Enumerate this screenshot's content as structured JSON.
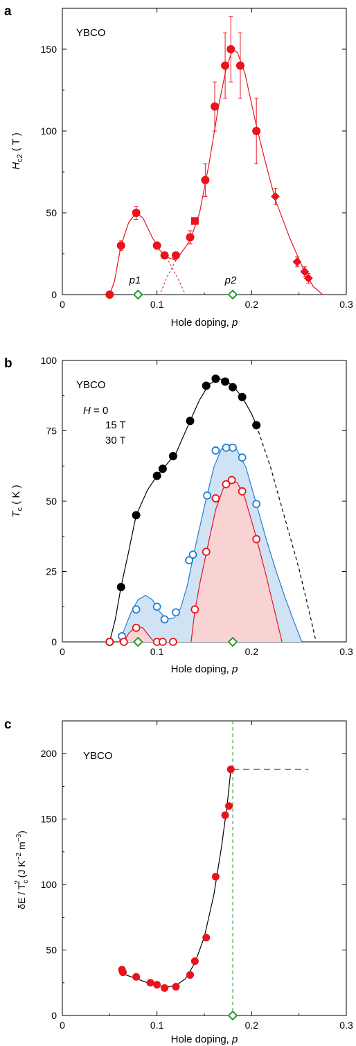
{
  "panels": {
    "a": {
      "label": "a",
      "sample": "YBCO",
      "xlabel_main": "Hole doping, ",
      "xlabel_var": "p",
      "ylabel_main": "H",
      "ylabel_sub": "c2",
      "ylabel_unit": " ( T )",
      "markers": [
        {
          "text": "p1",
          "x": 0.08
        },
        {
          "text": "p2",
          "x": 0.18
        }
      ]
    },
    "b": {
      "label": "b",
      "sample": "YBCO",
      "xlabel_main": "Hole doping, ",
      "xlabel_var": "p",
      "ylabel_main": "T",
      "ylabel_sub": "c",
      "ylabel_unit": " ( K )",
      "legend": [
        {
          "prefix": "H",
          "text": " = 0",
          "color": "#000000"
        },
        {
          "prefix": "",
          "text": "15 T",
          "color": "#1f7fd0"
        },
        {
          "prefix": "",
          "text": "30 T",
          "color": "#e8131b"
        }
      ]
    },
    "c": {
      "label": "c",
      "sample": "YBCO",
      "xlabel_main": "Hole doping, ",
      "xlabel_var": "p",
      "ylabel_text": "δE / T",
      "ylabel_sub": "c",
      "ylabel_sup": "2",
      "ylabel_unit": " (J K",
      "ylabel_unit_sup1": "−2",
      "ylabel_unit_mid": " m",
      "ylabel_unit_sup2": "−3",
      "ylabel_unit_end": ")"
    }
  },
  "colors": {
    "red": "#e8131b",
    "blue": "#1f7fd0",
    "blue_fill": "#cfe3f5",
    "red_fill": "#f9d2d4",
    "green": "#2a9a2a",
    "black": "#000000"
  },
  "chart_data": [
    {
      "type": "scatter",
      "panel": "a",
      "title": "",
      "xlabel": "Hole doping, p",
      "ylabel": "Hc2 ( T )",
      "xlim": [
        0,
        0.3
      ],
      "ylim": [
        0,
        175
      ],
      "xticks": [
        0,
        0.1,
        0.2,
        0.3
      ],
      "xtick_labels": [
        "0",
        "0.1",
        "0.2",
        "0.3"
      ],
      "yticks": [
        0,
        50,
        100,
        150
      ],
      "series": [
        {
          "marker": "circle",
          "color": "#e8131b",
          "points": [
            [
              0.05,
              0,
              0
            ],
            [
              0.062,
              30,
              3
            ],
            [
              0.078,
              50,
              4
            ],
            [
              0.1,
              30,
              0
            ],
            [
              0.108,
              24,
              0
            ],
            [
              0.12,
              24,
              0
            ],
            [
              0.135,
              35,
              4
            ],
            [
              0.151,
              70,
              10
            ],
            [
              0.161,
              115,
              15
            ],
            [
              0.172,
              140,
              20
            ],
            [
              0.178,
              150,
              20
            ],
            [
              0.188,
              140,
              20
            ],
            [
              0.205,
              100,
              20
            ]
          ]
        },
        {
          "marker": "square",
          "color": "#e8131b",
          "points": [
            [
              0.14,
              45,
              0
            ]
          ]
        },
        {
          "marker": "diamond",
          "color": "#e8131b",
          "points": [
            [
              0.225,
              60,
              5
            ],
            [
              0.248,
              20,
              3
            ],
            [
              0.256,
              14,
              3
            ],
            [
              0.26,
              10,
              3
            ]
          ]
        }
      ],
      "curves": [
        {
          "style": "solid",
          "points": [
            [
              0.05,
              0
            ],
            [
              0.055,
              8
            ],
            [
              0.062,
              30
            ],
            [
              0.07,
              44
            ],
            [
              0.078,
              50
            ],
            [
              0.085,
              47
            ],
            [
              0.095,
              35
            ],
            [
              0.103,
              27
            ],
            [
              0.11,
              23
            ],
            [
              0.12,
              21
            ],
            [
              0.135,
              33
            ],
            [
              0.145,
              50
            ],
            [
              0.155,
              80
            ],
            [
              0.165,
              115
            ],
            [
              0.173,
              138
            ],
            [
              0.18,
              150
            ],
            [
              0.185,
              148
            ],
            [
              0.193,
              135
            ],
            [
              0.205,
              103
            ],
            [
              0.215,
              80
            ],
            [
              0.225,
              58
            ],
            [
              0.24,
              35
            ],
            [
              0.255,
              15
            ],
            [
              0.265,
              5
            ],
            [
              0.275,
              0
            ]
          ]
        }
      ],
      "dashed_curves": [
        {
          "points": [
            [
              0.11,
              23
            ],
            [
              0.122,
              10
            ],
            [
              0.13,
              0
            ]
          ]
        },
        {
          "points": [
            [
              0.12,
              21
            ],
            [
              0.11,
              10
            ],
            [
              0.103,
              0
            ]
          ]
        }
      ],
      "open_markers": [
        {
          "x": 0.08,
          "y": 0
        },
        {
          "x": 0.18,
          "y": 0
        }
      ]
    },
    {
      "type": "scatter",
      "panel": "b",
      "title": "",
      "xlabel": "Hole doping, p",
      "ylabel": "Tc ( K )",
      "xlim": [
        0,
        0.3
      ],
      "ylim": [
        0,
        100
      ],
      "xticks": [
        0,
        0.1,
        0.2,
        0.3
      ],
      "xtick_labels": [
        "0",
        "0.1",
        "0.2",
        "0.3"
      ],
      "yticks": [
        0,
        25,
        50,
        75,
        100
      ],
      "series": [
        {
          "name": "H = 0",
          "marker": "filled",
          "color": "#000000",
          "points": [
            [
              0.05,
              0
            ],
            [
              0.062,
              19.5
            ],
            [
              0.078,
              45
            ],
            [
              0.1,
              59
            ],
            [
              0.106,
              61.5
            ],
            [
              0.117,
              66
            ],
            [
              0.135,
              78.5
            ],
            [
              0.152,
              91
            ],
            [
              0.162,
              93.5
            ],
            [
              0.172,
              92.5
            ],
            [
              0.18,
              90.5
            ],
            [
              0.19,
              87
            ],
            [
              0.205,
              77
            ]
          ]
        },
        {
          "name": "15 T",
          "marker": "open",
          "color": "#1f7fd0",
          "points": [
            [
              0.063,
              2
            ],
            [
              0.078,
              11.5
            ],
            [
              0.1,
              12.5
            ],
            [
              0.108,
              8
            ],
            [
              0.12,
              10.5
            ],
            [
              0.134,
              29
            ],
            [
              0.138,
              31
            ],
            [
              0.153,
              52
            ],
            [
              0.162,
              68
            ],
            [
              0.173,
              69
            ],
            [
              0.18,
              69
            ],
            [
              0.19,
              65.5
            ],
            [
              0.205,
              49
            ]
          ]
        },
        {
          "name": "30 T",
          "marker": "open",
          "color": "#e8131b",
          "points": [
            [
              0.05,
              0
            ],
            [
              0.065,
              0
            ],
            [
              0.078,
              5
            ],
            [
              0.1,
              0
            ],
            [
              0.106,
              0
            ],
            [
              0.117,
              0
            ],
            [
              0.14,
              11.5
            ],
            [
              0.152,
              32
            ],
            [
              0.162,
              51
            ],
            [
              0.173,
              56
            ],
            [
              0.179,
              57.5
            ],
            [
              0.19,
              53.5
            ],
            [
              0.205,
              36.5
            ]
          ]
        }
      ],
      "curves": [
        {
          "name": "H = 0",
          "color": "#000000",
          "style": "solid",
          "points": [
            [
              0.05,
              0
            ],
            [
              0.056,
              8
            ],
            [
              0.062,
              19.5
            ],
            [
              0.07,
              32
            ],
            [
              0.078,
              45
            ],
            [
              0.09,
              54
            ],
            [
              0.1,
              59
            ],
            [
              0.11,
              63
            ],
            [
              0.12,
              67
            ],
            [
              0.135,
              78.5
            ],
            [
              0.145,
              86
            ],
            [
              0.155,
              91.5
            ],
            [
              0.165,
              93.5
            ],
            [
              0.172,
              93
            ],
            [
              0.18,
              91
            ],
            [
              0.19,
              87
            ],
            [
              0.2,
              81
            ],
            [
              0.205,
              77
            ]
          ]
        },
        {
          "name": "H = 0 ext",
          "color": "#000000",
          "style": "dashed",
          "points": [
            [
              0.205,
              77
            ],
            [
              0.22,
              62
            ],
            [
              0.235,
              44
            ],
            [
              0.25,
              26
            ],
            [
              0.262,
              9
            ],
            [
              0.268,
              0
            ]
          ]
        },
        {
          "name": "15 T",
          "color": "#1f7fd0",
          "style": "solid",
          "fill": "#cfe3f5",
          "points": [
            [
              0.06,
              0
            ],
            [
              0.065,
              4
            ],
            [
              0.072,
              10
            ],
            [
              0.08,
              15
            ],
            [
              0.088,
              16.5
            ],
            [
              0.095,
              15
            ],
            [
              0.102,
              11
            ],
            [
              0.11,
              8
            ],
            [
              0.118,
              8.5
            ],
            [
              0.125,
              12
            ],
            [
              0.132,
              20
            ],
            [
              0.14,
              33
            ],
            [
              0.15,
              48
            ],
            [
              0.16,
              62
            ],
            [
              0.168,
              68.5
            ],
            [
              0.176,
              70
            ],
            [
              0.184,
              68.5
            ],
            [
              0.194,
              62
            ],
            [
              0.205,
              49
            ],
            [
              0.215,
              37
            ],
            [
              0.225,
              26
            ],
            [
              0.235,
              16
            ],
            [
              0.245,
              7
            ],
            [
              0.253,
              0
            ]
          ]
        },
        {
          "name": "30 T",
          "color": "#e8131b",
          "style": "solid",
          "fill": "#f9d2d4",
          "points": [
            [
              0.065,
              0
            ],
            [
              0.07,
              3
            ],
            [
              0.078,
              5.5
            ],
            [
              0.085,
              5
            ],
            [
              0.092,
              2
            ],
            [
              0.097,
              0
            ]
          ]
        },
        {
          "name": "30 T main",
          "color": "#e8131b",
          "style": "solid",
          "fill": "#f9d2d4",
          "points": [
            [
              0.136,
              0
            ],
            [
              0.14,
              11
            ],
            [
              0.146,
              22
            ],
            [
              0.153,
              33
            ],
            [
              0.162,
              47
            ],
            [
              0.17,
              54.5
            ],
            [
              0.178,
              57.5
            ],
            [
              0.185,
              56.5
            ],
            [
              0.193,
              51
            ],
            [
              0.205,
              37
            ],
            [
              0.215,
              24
            ],
            [
              0.225,
              10
            ],
            [
              0.232,
              0
            ]
          ]
        }
      ],
      "open_markers": [
        {
          "x": 0.08,
          "y": 0
        },
        {
          "x": 0.18,
          "y": 0
        }
      ]
    },
    {
      "type": "scatter",
      "panel": "c",
      "title": "",
      "xlabel": "Hole doping, p",
      "ylabel": "δE / Tc² (J K⁻² m⁻³)",
      "xlim": [
        0,
        0.3
      ],
      "ylim": [
        0,
        225
      ],
      "xticks": [
        0,
        0.1,
        0.2,
        0.3
      ],
      "xtick_labels": [
        "0",
        "0.1",
        "0.2",
        "0.3"
      ],
      "yticks": [
        0,
        50,
        100,
        150,
        200
      ],
      "series": [
        {
          "marker": "circle",
          "color": "#e8131b",
          "points": [
            [
              0.063,
              35
            ],
            [
              0.064,
              33
            ],
            [
              0.078,
              29.5
            ],
            [
              0.093,
              25
            ],
            [
              0.1,
              23.5
            ],
            [
              0.108,
              21
            ],
            [
              0.12,
              22
            ],
            [
              0.135,
              31
            ],
            [
              0.14,
              41.5
            ],
            [
              0.152,
              59.5
            ],
            [
              0.162,
              106
            ],
            [
              0.172,
              153
            ],
            [
              0.176,
              160
            ],
            [
              0.178,
              188
            ]
          ]
        }
      ],
      "curves": [
        {
          "style": "solid",
          "points": [
            [
              0.063,
              32
            ],
            [
              0.075,
              29
            ],
            [
              0.09,
              25
            ],
            [
              0.1,
              23
            ],
            [
              0.11,
              21.5
            ],
            [
              0.12,
              23
            ],
            [
              0.13,
              28
            ],
            [
              0.14,
              40
            ],
            [
              0.15,
              60
            ],
            [
              0.16,
              92
            ],
            [
              0.168,
              128
            ],
            [
              0.174,
              160
            ],
            [
              0.178,
              188
            ]
          ]
        }
      ],
      "vline": {
        "x": 0.18,
        "color": "#2a9a2a",
        "style": "dashed"
      },
      "hline": {
        "y": 188,
        "x_from": 0.18,
        "x_to": 0.26,
        "style": "dashed"
      },
      "open_markers": [
        {
          "x": 0.18,
          "y": 0
        }
      ]
    }
  ]
}
